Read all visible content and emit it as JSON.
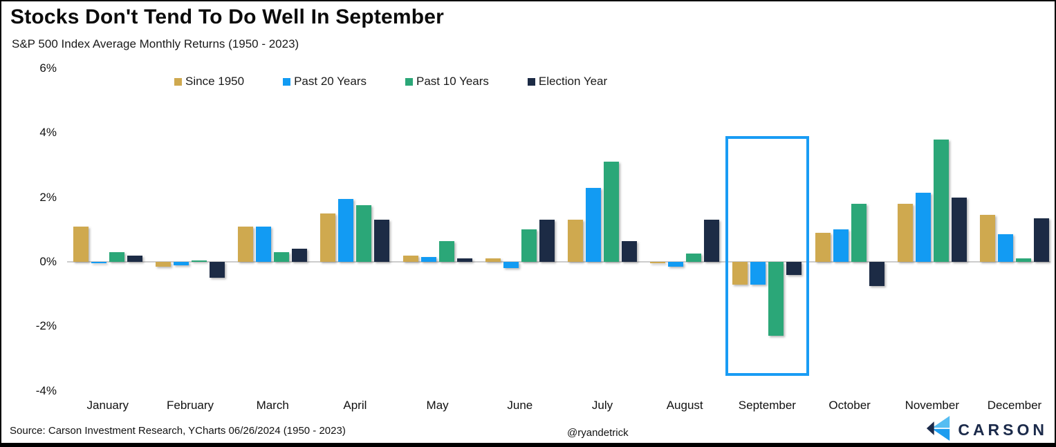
{
  "page": {
    "title": "Stocks Don't Tend To Do Well In September",
    "subtitle": "S&P 500 Index Average Monthly Returns (1950 - 2023)",
    "source": "Source: Carson Investment Research, YCharts 06/26/2024 (1950 - 2023)",
    "handle": "@ryandetrick",
    "logo_text": "CARSON"
  },
  "chart_data": {
    "type": "bar",
    "title": "Stocks Don't Tend To Do Well In September",
    "subtitle": "S&P 500 Index Average Monthly Returns (1950 - 2023)",
    "categories": [
      "January",
      "February",
      "March",
      "April",
      "May",
      "June",
      "July",
      "August",
      "September",
      "October",
      "November",
      "December"
    ],
    "series": [
      {
        "name": "Since 1950",
        "color": "#cfa94f",
        "values": [
          1.1,
          -0.15,
          1.1,
          1.5,
          0.2,
          0.1,
          1.3,
          -0.05,
          -0.7,
          0.9,
          1.8,
          1.45
        ]
      },
      {
        "name": "Past 20 Years",
        "color": "#129bf3",
        "values": [
          -0.05,
          -0.1,
          1.1,
          1.95,
          0.15,
          -0.2,
          2.3,
          -0.15,
          -0.7,
          1.0,
          2.15,
          0.85
        ]
      },
      {
        "name": "Past 10 Years",
        "color": "#2ba778",
        "values": [
          0.3,
          0.05,
          0.3,
          1.75,
          0.65,
          1.0,
          3.1,
          0.25,
          -2.3,
          1.8,
          3.8,
          0.1
        ]
      },
      {
        "name": "Election Year",
        "color": "#1c2b45",
        "values": [
          0.2,
          -0.5,
          0.4,
          1.3,
          0.1,
          1.3,
          0.65,
          1.3,
          -0.4,
          -0.75,
          2.0,
          1.35
        ]
      }
    ],
    "ylabel": "",
    "xlabel": "",
    "ylim": [
      -4,
      6
    ],
    "yticks": [
      6,
      4,
      2,
      0,
      -2,
      -4
    ],
    "ytick_suffix": "%",
    "grid": false,
    "legend_position": "top",
    "highlight": {
      "category": "September",
      "border_color": "#199cf4"
    },
    "colors": {
      "axis_line": "#cccccc",
      "logo_navy": "#1b2a4a",
      "logo_light_blue": "#56bdf2",
      "logo_mid_blue": "#1b9cef"
    }
  }
}
